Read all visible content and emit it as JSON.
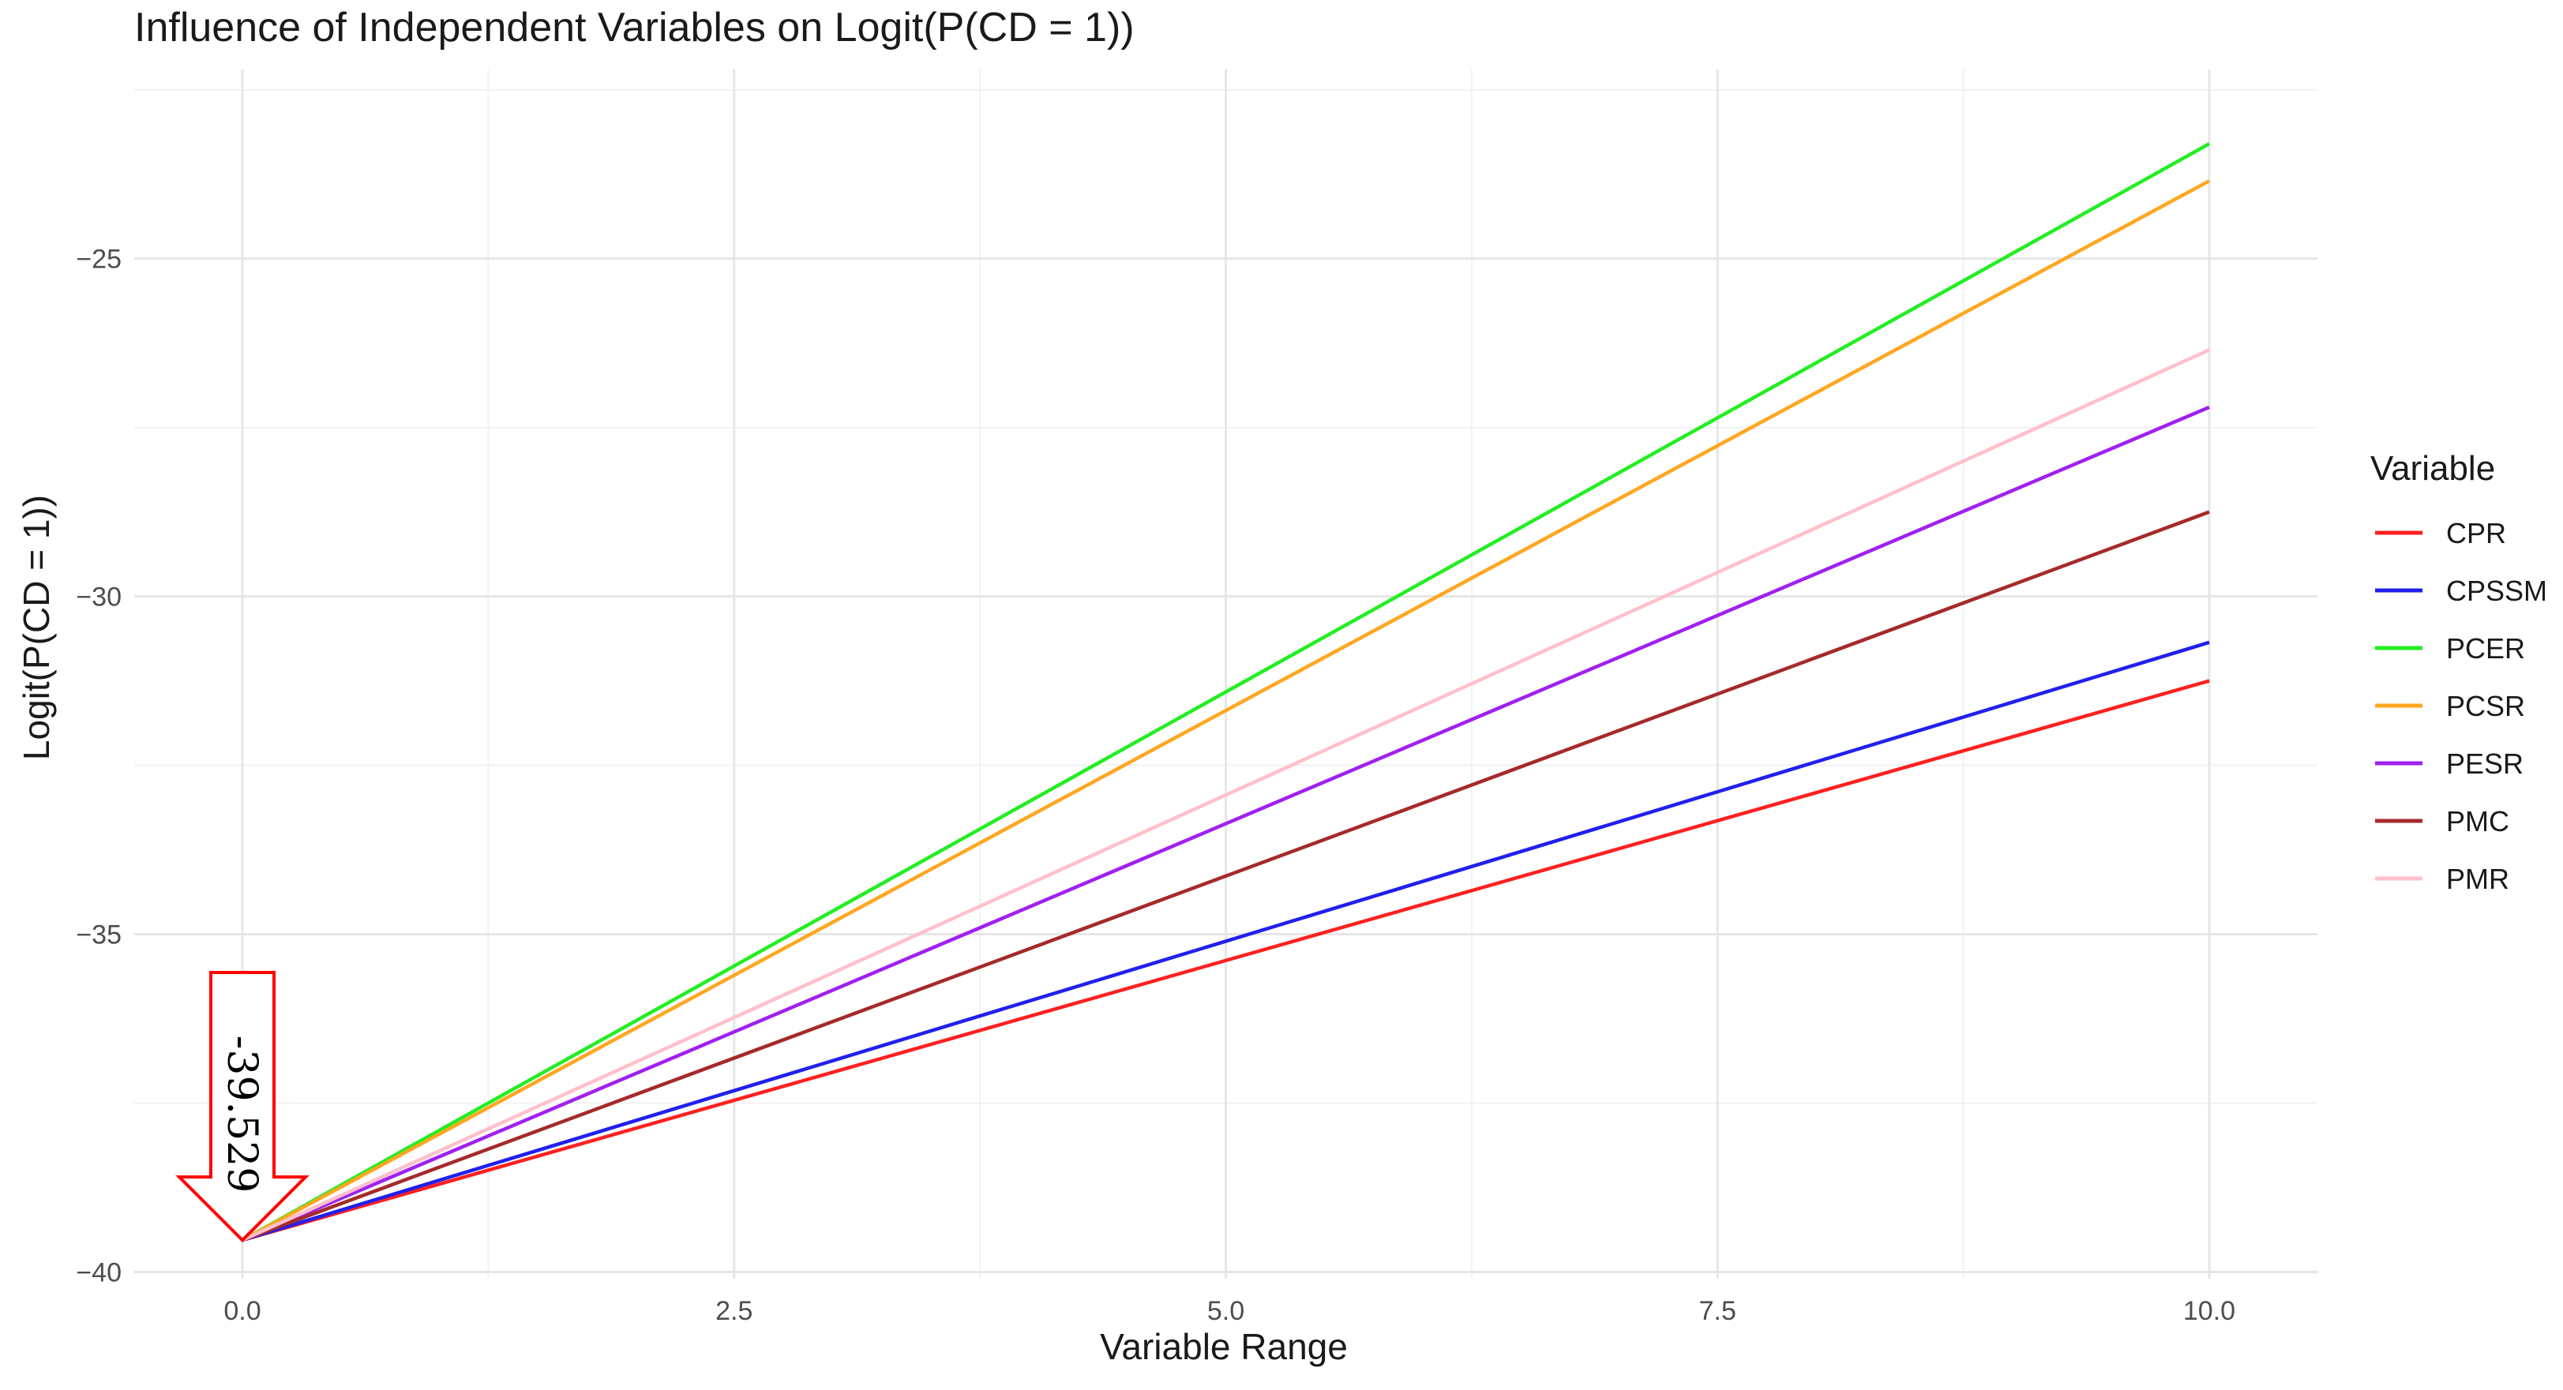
{
  "chart_data": {
    "type": "line",
    "title": "Influence of Independent Variables on Logit(P(CD = 1))",
    "xlabel": "Variable Range",
    "ylabel": "Logit(P(CD = 1))",
    "xlim": [
      -0.55,
      10.55
    ],
    "ylim": [
      -40.1,
      -22.2
    ],
    "x_ticks": [
      0.0,
      2.5,
      5.0,
      7.5,
      10.0
    ],
    "x_tick_labels": [
      "0.0",
      "2.5",
      "5.0",
      "7.5",
      "10.0"
    ],
    "y_ticks": [
      -40,
      -35,
      -30,
      -25
    ],
    "y_tick_labels": [
      "−40",
      "−35",
      "−30",
      "−25"
    ],
    "grid": true,
    "legend": {
      "title": "Variable",
      "position": "right"
    },
    "x": [
      0,
      10
    ],
    "series": [
      {
        "name": "CPR",
        "color": "#ff2020",
        "values": [
          -39.529,
          -31.25
        ]
      },
      {
        "name": "CPSSM",
        "color": "#2020ee",
        "values": [
          -39.529,
          -30.68
        ]
      },
      {
        "name": "PCER",
        "color": "#22ee22",
        "values": [
          -39.529,
          -23.3
        ]
      },
      {
        "name": "PCSR",
        "color": "#ffa620",
        "values": [
          -39.529,
          -23.85
        ]
      },
      {
        "name": "PESR",
        "color": "#a020f0",
        "values": [
          -39.529,
          -27.2
        ]
      },
      {
        "name": "PMC",
        "color": "#a52a2a",
        "values": [
          -39.529,
          -28.75
        ]
      },
      {
        "name": "PMR",
        "color": "#ffc0cb",
        "values": [
          -39.529,
          -26.35
        ]
      }
    ],
    "annotation": {
      "text": "-39.529",
      "x": 0,
      "y": -39.529,
      "color": "#ff0000"
    }
  }
}
